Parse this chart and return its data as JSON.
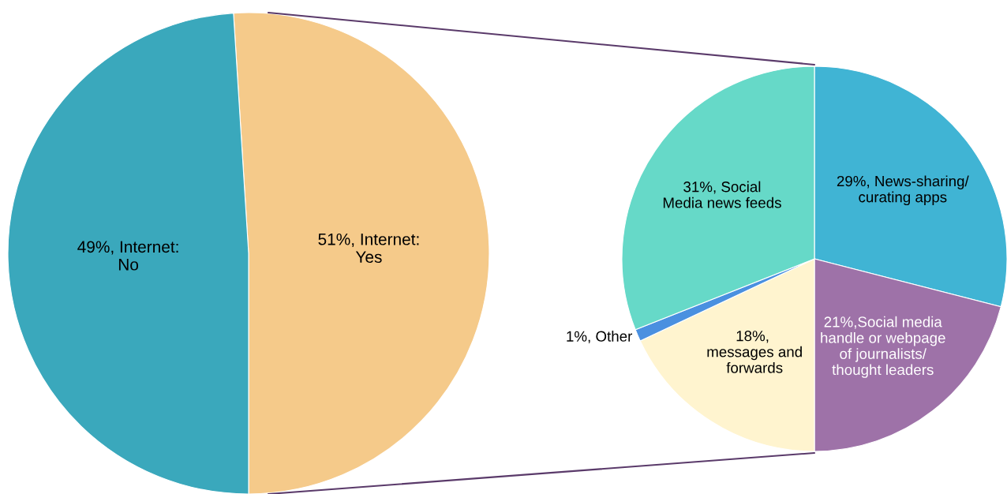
{
  "chart_data": [
    {
      "type": "pie",
      "categories": [
        "51%, Internet:\nYes",
        "49%, Internet:\nNo"
      ],
      "values": [
        51,
        49
      ],
      "colors": [
        "#f5ca8a",
        "#3aa8bc"
      ]
    },
    {
      "type": "pie",
      "categories": [
        "29%, News-sharing/\ncurating apps",
        "21%,Social media\nhandle or webpage\nof journalists/\nthought leaders",
        "18%, \nmessages and\nforwards",
        "1%, Other",
        "31%, Social\nMedia news feeds"
      ],
      "values": [
        29,
        21,
        18,
        1,
        31
      ],
      "colors": [
        "#40b4d4",
        "#9e72a8",
        "#fff4cf",
        "#4a90e0",
        "#66d9c8"
      ]
    }
  ]
}
